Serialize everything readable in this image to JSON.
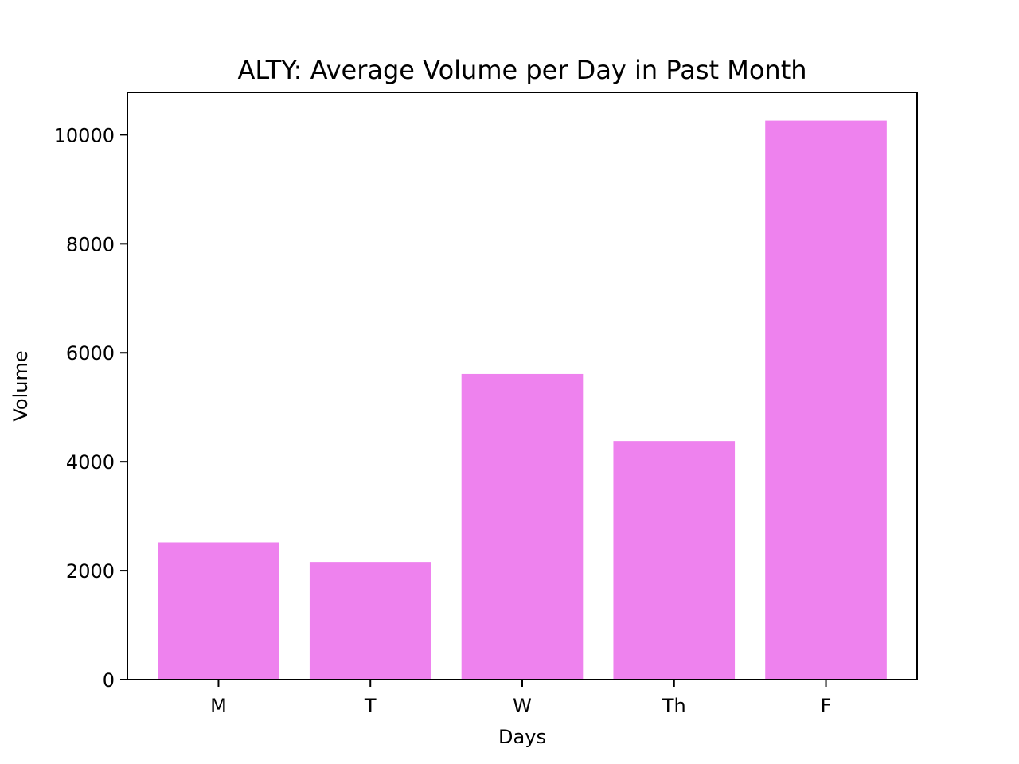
{
  "chart_data": {
    "type": "bar",
    "title": "ALTY: Average Volume per Day in Past Month",
    "xlabel": "Days",
    "ylabel": "Volume",
    "categories": [
      "M",
      "T",
      "W",
      "Th",
      "F"
    ],
    "values": [
      2520,
      2160,
      5610,
      4380,
      10260
    ],
    "ylim": [
      0,
      10780
    ],
    "yticks": [
      0,
      2000,
      4000,
      6000,
      8000,
      10000
    ],
    "bar_color": "#ee82ee",
    "grid": false,
    "legend": "none"
  }
}
